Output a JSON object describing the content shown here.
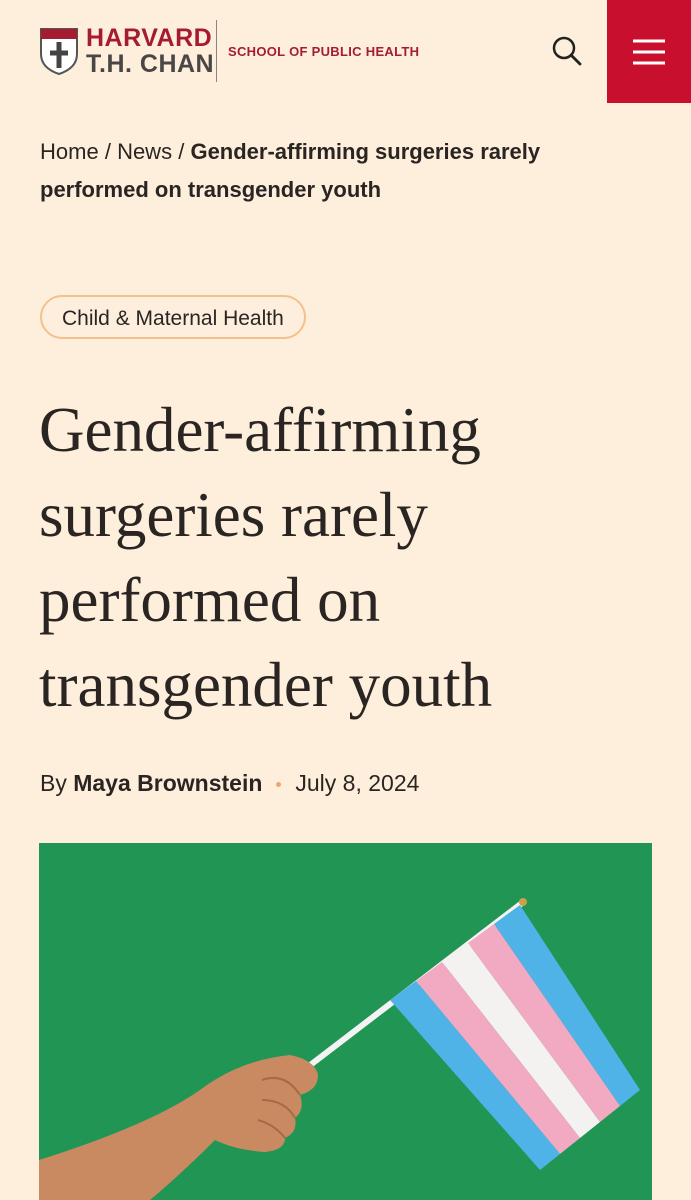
{
  "header": {
    "logo": {
      "line1": "HARVARD",
      "line2": "T.H. CHAN"
    },
    "school": "SCHOOL OF PUBLIC HEALTH"
  },
  "breadcrumb": {
    "items": [
      "Home",
      "News",
      "Gender-affirming surgeries rarely performed on transgender youth"
    ],
    "separator": "/"
  },
  "article": {
    "tag": "Child & Maternal Health",
    "title": "Gender-affirming surgeries rarely performed on transgender youth",
    "byline": {
      "prefix": "By",
      "author": "Maya Brownstein",
      "date": "July 8, 2024"
    }
  }
}
